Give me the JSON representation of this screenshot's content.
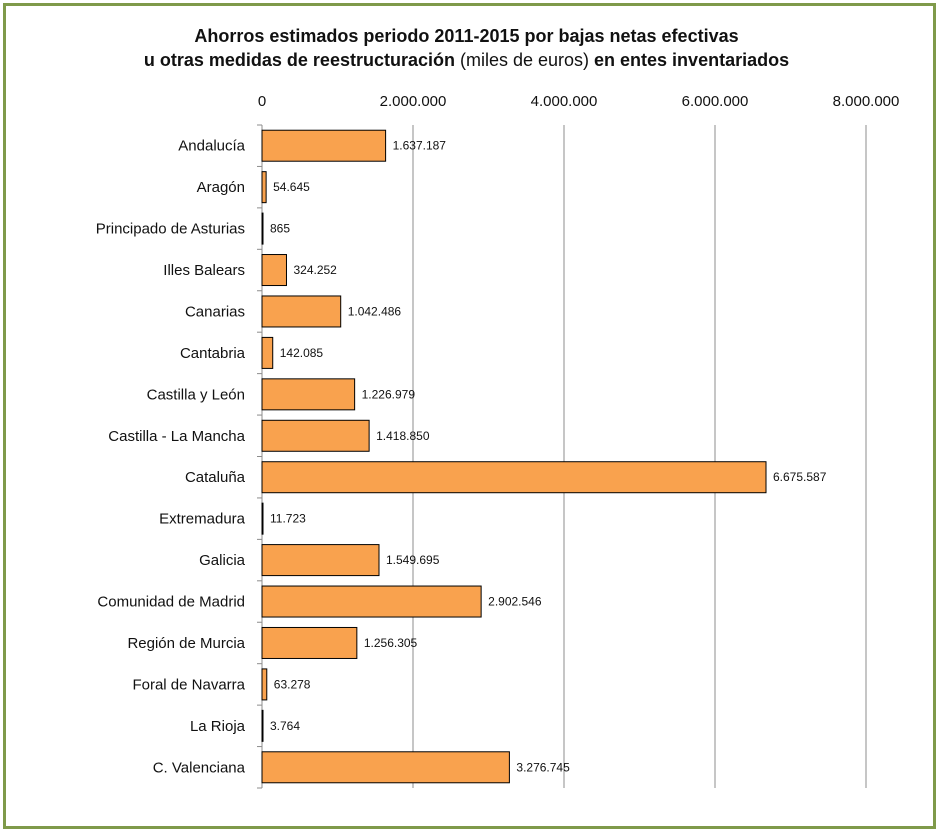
{
  "chart_data": {
    "type": "bar",
    "orientation": "horizontal",
    "title_line1": "Ahorros estimados periodo 2011-2015 por bajas netas efectivas",
    "title_line2_bold_a": "u otras medidas de reestructuración",
    "title_line2_normal": " (miles de euros) ",
    "title_line2_bold_b": "en entes inventariados",
    "categories": [
      "Andalucía",
      "Aragón",
      "Principado de Asturias",
      "Illes Balears",
      "Canarias",
      "Cantabria",
      "Castilla y León",
      "Castilla - La Mancha",
      "Cataluña",
      "Extremadura",
      "Galicia",
      "Comunidad de Madrid",
      "Región de Murcia",
      "Foral de Navarra",
      "La Rioja",
      "C. Valenciana"
    ],
    "values": [
      1637187,
      54645,
      865,
      324252,
      1042486,
      142085,
      1226979,
      1418850,
      6675587,
      11723,
      1549695,
      2902546,
      1256305,
      63278,
      3764,
      3276745
    ],
    "data_labels": [
      "1.637.187",
      "54.645",
      "865",
      "324.252",
      "1.042.486",
      "142.085",
      "1.226.979",
      "1.418.850",
      "6.675.587",
      "11.723",
      "1.549.695",
      "2.902.546",
      "1.256.305",
      "63.278",
      "3.764",
      "3.276.745"
    ],
    "xlim": [
      0,
      8000000
    ],
    "ticks": [
      0,
      2000000,
      4000000,
      6000000,
      8000000
    ],
    "tick_labels": [
      "0",
      "2.000.000",
      "4.000.000",
      "6.000.000",
      "8.000.000"
    ],
    "x_axis_position": "top",
    "grid": true,
    "bar_color": "#f9a24e",
    "bar_edge_color": "#000000",
    "frame_color": "#7f9a4a"
  }
}
